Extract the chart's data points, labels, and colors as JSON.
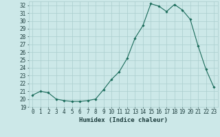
{
  "x": [
    0,
    1,
    2,
    3,
    4,
    5,
    6,
    7,
    8,
    9,
    10,
    11,
    12,
    13,
    14,
    15,
    16,
    17,
    18,
    19,
    20,
    21,
    22,
    23
  ],
  "y": [
    20.5,
    21.0,
    20.8,
    20.0,
    19.8,
    19.7,
    19.7,
    19.8,
    20.0,
    21.2,
    22.5,
    23.5,
    25.2,
    27.8,
    29.4,
    32.2,
    31.9,
    31.2,
    32.1,
    31.4,
    30.2,
    26.8,
    23.8,
    21.5
  ],
  "xlabel": "Humidex (Indice chaleur)",
  "ylim": [
    19,
    32.5
  ],
  "xlim": [
    -0.5,
    23.5
  ],
  "yticks": [
    19,
    20,
    21,
    22,
    23,
    24,
    25,
    26,
    27,
    28,
    29,
    30,
    31,
    32
  ],
  "xticks": [
    0,
    1,
    2,
    3,
    4,
    5,
    6,
    7,
    8,
    9,
    10,
    11,
    12,
    13,
    14,
    15,
    16,
    17,
    18,
    19,
    20,
    21,
    22,
    23
  ],
  "line_color": "#1a6b5a",
  "marker": "D",
  "marker_size": 1.8,
  "bg_color": "#cce8e8",
  "grid_color": "#aacece",
  "tick_color": "#1a3a3a",
  "label_color": "#1a3a3a",
  "font_family": "monospace",
  "tick_fontsize": 5.5,
  "xlabel_fontsize": 6.5
}
